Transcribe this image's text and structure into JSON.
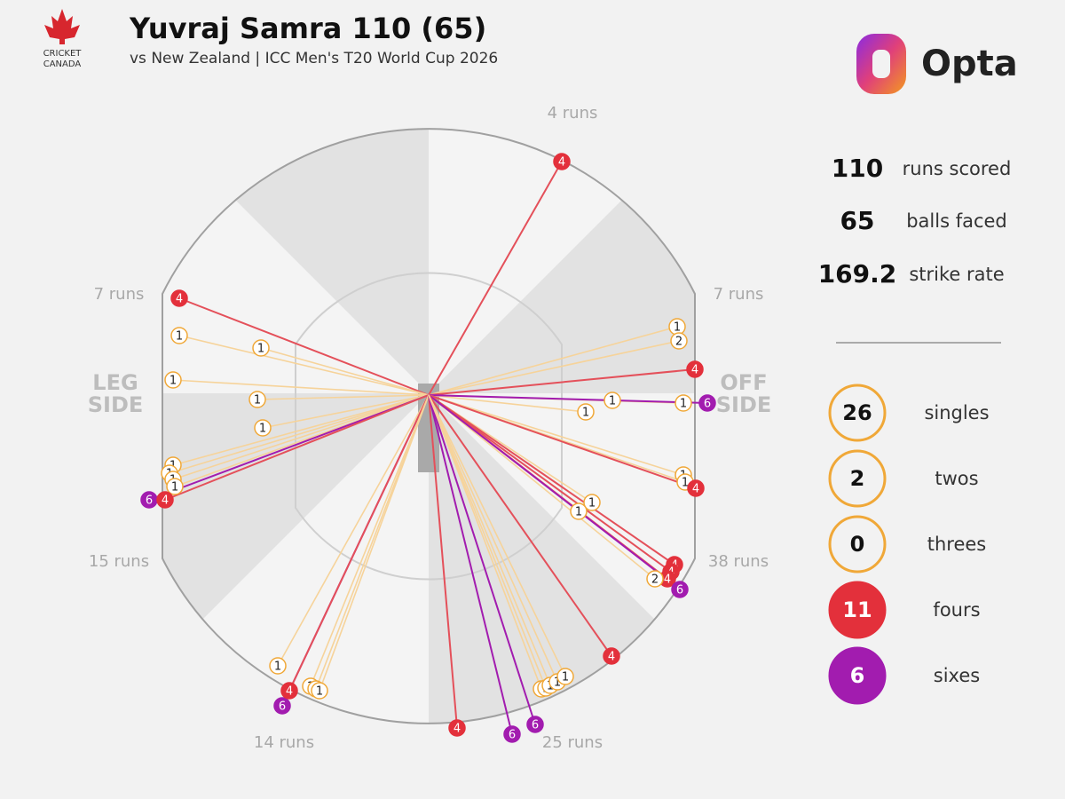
{
  "header": {
    "title": "Yuvraj Samra 110 (65)",
    "subtitle": "vs New Zealand | ICC Men's T20 World Cup 2026",
    "logo_text": [
      "CRICKET",
      "CANADA"
    ],
    "brand": "Opta"
  },
  "zones": [
    {
      "label": "4 runs"
    },
    {
      "label": "7 runs"
    },
    {
      "label": "7 runs"
    },
    {
      "label": "15 runs"
    },
    {
      "label": "38 runs"
    },
    {
      "label": "14 runs"
    },
    {
      "label": "25 runs"
    }
  ],
  "sides": {
    "leg": [
      "LEG",
      "SIDE"
    ],
    "off": [
      "OFF",
      "SIDE"
    ]
  },
  "stats": [
    {
      "value": 110,
      "label": "runs scored"
    },
    {
      "value": 65,
      "label": "balls faced"
    },
    {
      "value": 169.2,
      "label": "strike rate"
    }
  ],
  "legend": [
    {
      "value": 26,
      "label": "singles"
    },
    {
      "value": 2,
      "label": "twos"
    },
    {
      "value": 0,
      "label": "threes"
    },
    {
      "value": 11,
      "label": "fours"
    },
    {
      "value": 6,
      "label": "sixes"
    }
  ],
  "shots": [
    {
      "runs": 4
    },
    {
      "runs": 4
    },
    {
      "runs": 1
    },
    {
      "runs": 1
    },
    {
      "runs": 1
    },
    {
      "runs": 1
    },
    {
      "runs": 1
    },
    {
      "runs": 1
    },
    {
      "runs": 1
    },
    {
      "runs": 1
    },
    {
      "runs": 1
    },
    {
      "runs": 6
    },
    {
      "runs": 4
    },
    {
      "runs": 1
    },
    {
      "runs": 2
    },
    {
      "runs": 4
    },
    {
      "runs": 1
    },
    {
      "runs": 1
    },
    {
      "runs": 1
    },
    {
      "runs": 6
    },
    {
      "runs": 1
    },
    {
      "runs": 1
    },
    {
      "runs": 4
    },
    {
      "runs": 1
    },
    {
      "runs": 1
    },
    {
      "runs": 4
    },
    {
      "runs": 4
    },
    {
      "runs": 4
    },
    {
      "runs": 2
    },
    {
      "runs": 6
    },
    {
      "runs": 4
    },
    {
      "runs": 1
    },
    {
      "runs": 6
    },
    {
      "runs": 4
    },
    {
      "runs": 1
    },
    {
      "runs": 1
    },
    {
      "runs": 1
    },
    {
      "runs": 4
    },
    {
      "runs": 6
    },
    {
      "runs": 6
    },
    {
      "runs": 1
    },
    {
      "runs": 1
    },
    {
      "runs": 1
    },
    {
      "runs": 1
    },
    {
      "runs": 1
    }
  ]
}
